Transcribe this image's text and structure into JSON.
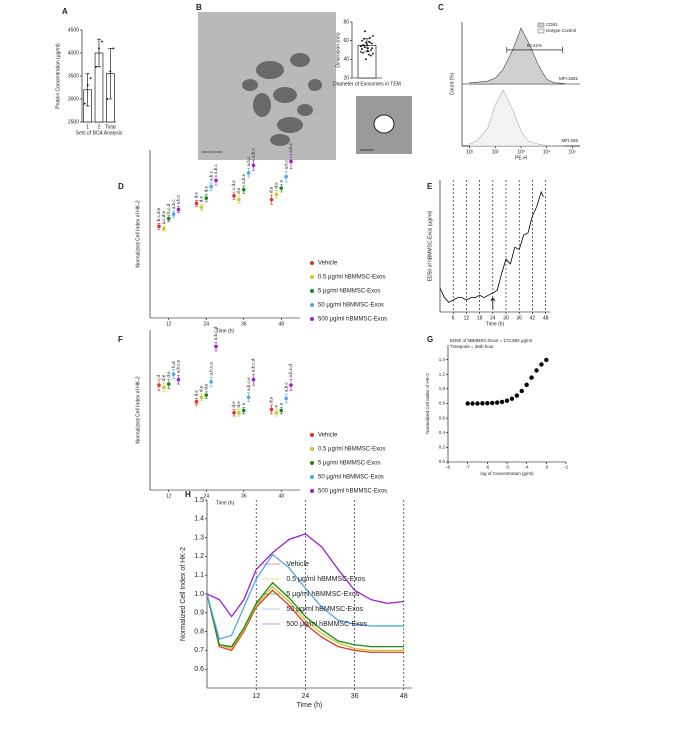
{
  "chart_data": [
    {
      "type": "bar",
      "label": "A",
      "ylabel": "Protein Concentration (μg/ml)",
      "xlabel": "Sets of BCA Analysis",
      "categories": [
        "1",
        "2",
        "Total"
      ],
      "values": [
        3200,
        4000,
        3550
      ],
      "errors": [
        350,
        300,
        550
      ],
      "points": [
        [
          2900,
          3300,
          3450
        ],
        [
          3700,
          4100,
          4250
        ],
        [
          3000,
          3600,
          4100
        ]
      ],
      "color": "#ffffff",
      "ylim": [
        2500,
        4500
      ],
      "yticks": [
        2500,
        3000,
        3500,
        4000,
        4500
      ]
    },
    {
      "type": "image",
      "label": "B"
    },
    {
      "type": "dotbar",
      "ylabel": "Dimension (nm)",
      "title": "Diameter of Exosomes in TEM",
      "values": [
        55
      ],
      "errors": [
        7
      ],
      "color": "#ffffff",
      "points": [
        48,
        52,
        60,
        45,
        55,
        58,
        62,
        50,
        53,
        57,
        40,
        65,
        56,
        54,
        49,
        51,
        59,
        47,
        63,
        55,
        44,
        70,
        52,
        58,
        46
      ],
      "ylim": [
        20,
        80
      ],
      "yticks": [
        20,
        40,
        60,
        80
      ]
    },
    {
      "type": "flow",
      "label": "C",
      "xlabel": "PE-H",
      "ylabel": "Count (%)",
      "log_x": true,
      "x": [
        10,
        20,
        50,
        100,
        200,
        500,
        1000,
        2000,
        5000,
        10000,
        20000,
        50000
      ],
      "series": [
        {
          "name": "CD81",
          "color": "#d0d0d0",
          "values": [
            2,
            3,
            5,
            10,
            25,
            60,
            95,
            70,
            30,
            8,
            2,
            1
          ]
        },
        {
          "name": "Isotype Control",
          "color": "#f2f2f2",
          "values": [
            3,
            10,
            30,
            70,
            95,
            60,
            25,
            8,
            3,
            1,
            0,
            0
          ]
        }
      ],
      "annotations": [
        "MFI:1681",
        "MFI:256",
        "80.41%"
      ],
      "xlim": [
        5,
        200000
      ],
      "xticks": [
        {
          "value": 10,
          "label": "10¹"
        },
        {
          "value": 100,
          "label": "10²"
        },
        {
          "value": 1000,
          "label": "10³"
        },
        {
          "value": 10000,
          "label": "10⁴"
        },
        {
          "value": 100000,
          "label": "10⁵"
        }
      ],
      "ylim": [
        0,
        100
      ],
      "legend": "top right"
    },
    {
      "type": "dots",
      "label": "D",
      "ylabel": "Normalized Cell Index of HK-2",
      "xlabel": "Time (h)",
      "categories": [
        "12",
        "24",
        "36",
        "48"
      ],
      "ylim": [
        0,
        2.2
      ],
      "legend": "right",
      "series": [
        {
          "name": "Vehicle",
          "color": "#e8312a",
          "values": [
            1.2,
            1.5,
            1.6,
            1.55
          ],
          "errors": [
            0.04,
            0.04,
            0.05,
            0.06
          ],
          "letters": [
            "b,c,d,e",
            "d,e",
            "c,d,e",
            "d,e"
          ]
        },
        {
          "name": "0.5 μg/ml hBMMSC-Exos",
          "color": "#c8c82a",
          "values": [
            1.17,
            1.45,
            1.55,
            1.62
          ],
          "errors": [
            0.03,
            0.04,
            0.05,
            0.05
          ],
          "letters": [
            "a,c,d,e",
            "d,e",
            "d,e",
            "d,e"
          ]
        },
        {
          "name": "5 μg/ml hBMMSC-Exos",
          "color": "#1a8a1a",
          "values": [
            1.3,
            1.57,
            1.68,
            1.7
          ],
          "errors": [
            0.04,
            0.05,
            0.05,
            0.05
          ],
          "letters": [
            "b,c,d",
            "d,e",
            "a,b,e",
            "e"
          ]
        },
        {
          "name": "50 μg/ml hBMMSC-Exos",
          "color": "#4da6ee",
          "values": [
            1.36,
            1.72,
            1.9,
            1.85
          ],
          "errors": [
            0.04,
            0.05,
            0.06,
            0.07
          ],
          "letters": [
            "a,b,c",
            "a,b,c",
            "a,b,c",
            "a,b,c"
          ]
        },
        {
          "name": "500 μg/ml hBMMSC-Exos",
          "color": "#a020d0",
          "values": [
            1.42,
            1.8,
            2.0,
            2.05
          ],
          "errors": [
            0.04,
            0.06,
            0.07,
            0.09
          ],
          "letters": [
            "a,b,c",
            "a,b,c",
            "a,b,c",
            "a,b,c"
          ]
        }
      ]
    },
    {
      "type": "line",
      "label": "E",
      "ylabel": "ED50 of hBMMSC-Exos (μg/ml)",
      "xlabel": "Time (h)",
      "x": [
        0,
        2,
        4,
        6,
        8,
        10,
        12,
        14,
        16,
        18,
        20,
        22,
        24,
        26,
        28,
        30,
        32,
        34,
        36,
        38,
        40,
        42,
        44,
        46,
        47
      ],
      "series": [
        {
          "color": "#000000",
          "values": [
            10,
            6,
            4,
            5,
            6,
            6,
            5,
            6,
            6,
            7,
            6,
            7,
            8,
            9,
            16,
            22,
            20,
            27,
            26,
            32,
            33,
            40,
            44,
            50,
            48
          ]
        }
      ],
      "xlim": [
        0,
        50
      ],
      "xticks": [
        6,
        12,
        18,
        24,
        30,
        36,
        42,
        48
      ],
      "ylim": [
        0,
        55
      ],
      "vlines": true
    },
    {
      "type": "dots",
      "label": "F",
      "ylabel": "Normalized Cell Index of HK-2",
      "xlabel": "Time (h)",
      "categories": [
        "12",
        "24",
        "36",
        "48"
      ],
      "ylim": [
        0,
        1.45
      ],
      "legend": "right",
      "series": [
        {
          "name": "Vehicle",
          "color": "#e8312a",
          "values": [
            0.95,
            0.8,
            0.7,
            0.73
          ],
          "errors": [
            0.05,
            0.03,
            0.03,
            0.04
          ],
          "letters": [
            "d",
            "d,e",
            "d,e",
            "d,e"
          ]
        },
        {
          "name": "0.5 μg/ml hBMMSC-Exos",
          "color": "#c8c82a",
          "values": [
            0.93,
            0.84,
            0.7,
            0.7
          ],
          "errors": [
            0.04,
            0.03,
            0.03,
            0.03
          ],
          "letters": [
            "d,e",
            "d,e",
            "d,e",
            "e"
          ]
        },
        {
          "name": "5 μg/ml hBMMSC-Exos",
          "color": "#1a8a1a",
          "values": [
            0.96,
            0.86,
            0.72,
            0.72
          ],
          "errors": [
            0.04,
            0.03,
            0.03,
            0.03
          ],
          "letters": [
            "d,e",
            "d,e",
            "e",
            "e"
          ]
        },
        {
          "name": "50 μg/ml hBMMSC-Exos",
          "color": "#4da6ee",
          "values": [
            1.05,
            0.98,
            0.84,
            0.83
          ],
          "errors": [
            0.04,
            0.04,
            0.04,
            0.04
          ],
          "letters": [
            "b,d",
            "a,b,c,e",
            "a,b,c,e",
            "a,b,c"
          ]
        },
        {
          "name": "500 μg/ml hBMMSC-Exos",
          "color": "#a020d0",
          "values": [
            1.0,
            1.3,
            1.0,
            0.95
          ],
          "errors": [
            0.04,
            0.04,
            0.05,
            0.05
          ],
          "letters": [
            "a,b,c,e",
            "a,b,c,d",
            "a,b,c,d",
            "a,b,c,d"
          ]
        }
      ]
    },
    {
      "type": "scatter",
      "label": "G",
      "annotations": [
        "ED50 of hBMMSC-Exos = 172.582 μg/ml",
        "Timepoint = 26th hour"
      ],
      "ylabel": "Normalized Cell Index of HK-2",
      "xlabel": "log of Concentration (g/ml)",
      "x": [
        -7,
        -6.75,
        -6.5,
        -6.25,
        -6,
        -5.75,
        -5.5,
        -5.25,
        -5,
        -4.75,
        -4.5,
        -4.25,
        -4,
        -3.75,
        -3.5,
        -3.25,
        -3
      ],
      "values": [
        0.8,
        0.8,
        0.8,
        0.802,
        0.804,
        0.807,
        0.812,
        0.822,
        0.838,
        0.865,
        0.908,
        0.971,
        1.055,
        1.154,
        1.252,
        1.334,
        1.396
      ],
      "color": "#000000",
      "xlim": [
        -8,
        -2
      ],
      "xticks": [
        -8,
        -7,
        -6,
        -5,
        -4,
        -3,
        -2
      ],
      "ylim": [
        0,
        1.6
      ],
      "yticks": [
        {
          "value": 0,
          "label": "0.0"
        },
        0.2,
        0.4,
        0.6,
        0.8,
        {
          "value": 1,
          "label": "1.0"
        },
        1.2,
        1.4
      ]
    },
    {
      "type": "line",
      "label": "H",
      "ylabel": "Normalized Cell Index of HK-2",
      "xlabel": "Time (h)",
      "x": [
        0,
        3,
        6,
        9,
        12,
        16,
        20,
        24,
        28,
        32,
        36,
        40,
        44,
        48
      ],
      "series": [
        {
          "name": "Vehicle",
          "color": "#e8312a",
          "values": [
            1.0,
            0.72,
            0.7,
            0.8,
            0.93,
            1.02,
            0.94,
            0.84,
            0.77,
            0.72,
            0.7,
            0.69,
            0.69,
            0.69
          ]
        },
        {
          "name": "0.5 μg/ml hBMMSC-Exos",
          "color": "#c8c82a",
          "values": [
            1.0,
            0.73,
            0.71,
            0.81,
            0.94,
            1.04,
            0.96,
            0.86,
            0.79,
            0.74,
            0.71,
            0.7,
            0.7,
            0.7
          ]
        },
        {
          "name": "5 μg/ml hBMMSC-Exos",
          "color": "#1a8a1a",
          "values": [
            1.0,
            0.73,
            0.72,
            0.82,
            0.95,
            1.06,
            0.98,
            0.88,
            0.81,
            0.75,
            0.73,
            0.72,
            0.72,
            0.72
          ]
        },
        {
          "name": "50 μg/ml hBMMSC-Exos",
          "color": "#4da6ee",
          "values": [
            1.0,
            0.76,
            0.78,
            0.93,
            1.08,
            1.21,
            1.14,
            1.03,
            0.93,
            0.86,
            0.84,
            0.83,
            0.83,
            0.83
          ]
        },
        {
          "name": "500 μg/ml hBMMSC-Exos",
          "color": "#a020d0",
          "values": [
            1.0,
            0.97,
            0.88,
            0.97,
            1.13,
            1.22,
            1.29,
            1.32,
            1.25,
            1.13,
            1.02,
            0.97,
            0.95,
            0.96
          ]
        }
      ],
      "xlim": [
        0,
        50
      ],
      "xticks": [
        12,
        24,
        36,
        48
      ],
      "ylim": [
        0.5,
        1.5
      ],
      "yticks": [
        0.6,
        0.7,
        0.8,
        0.9,
        {
          "value": 1,
          "label": "1.0"
        },
        1.1,
        1.2,
        1.3,
        1.4,
        1.5
      ],
      "vlines": true,
      "legend": "center"
    }
  ]
}
